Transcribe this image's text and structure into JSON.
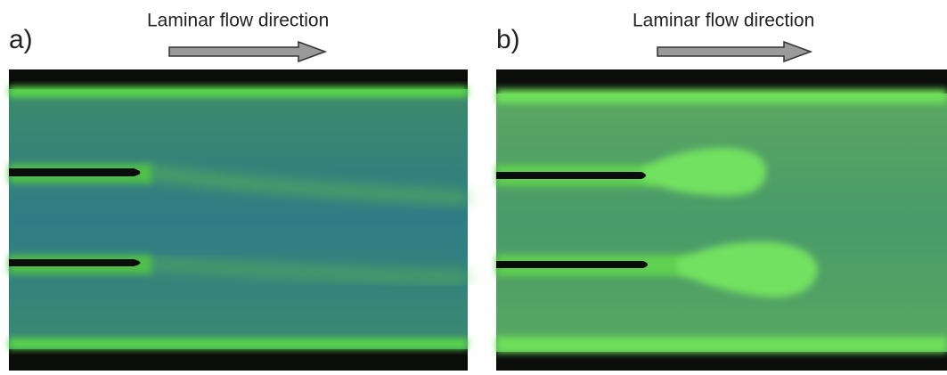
{
  "panels": [
    {
      "label": "a)",
      "caption": "Laminar flow direction"
    },
    {
      "label": "b)",
      "caption": "Laminar flow direction"
    }
  ]
}
